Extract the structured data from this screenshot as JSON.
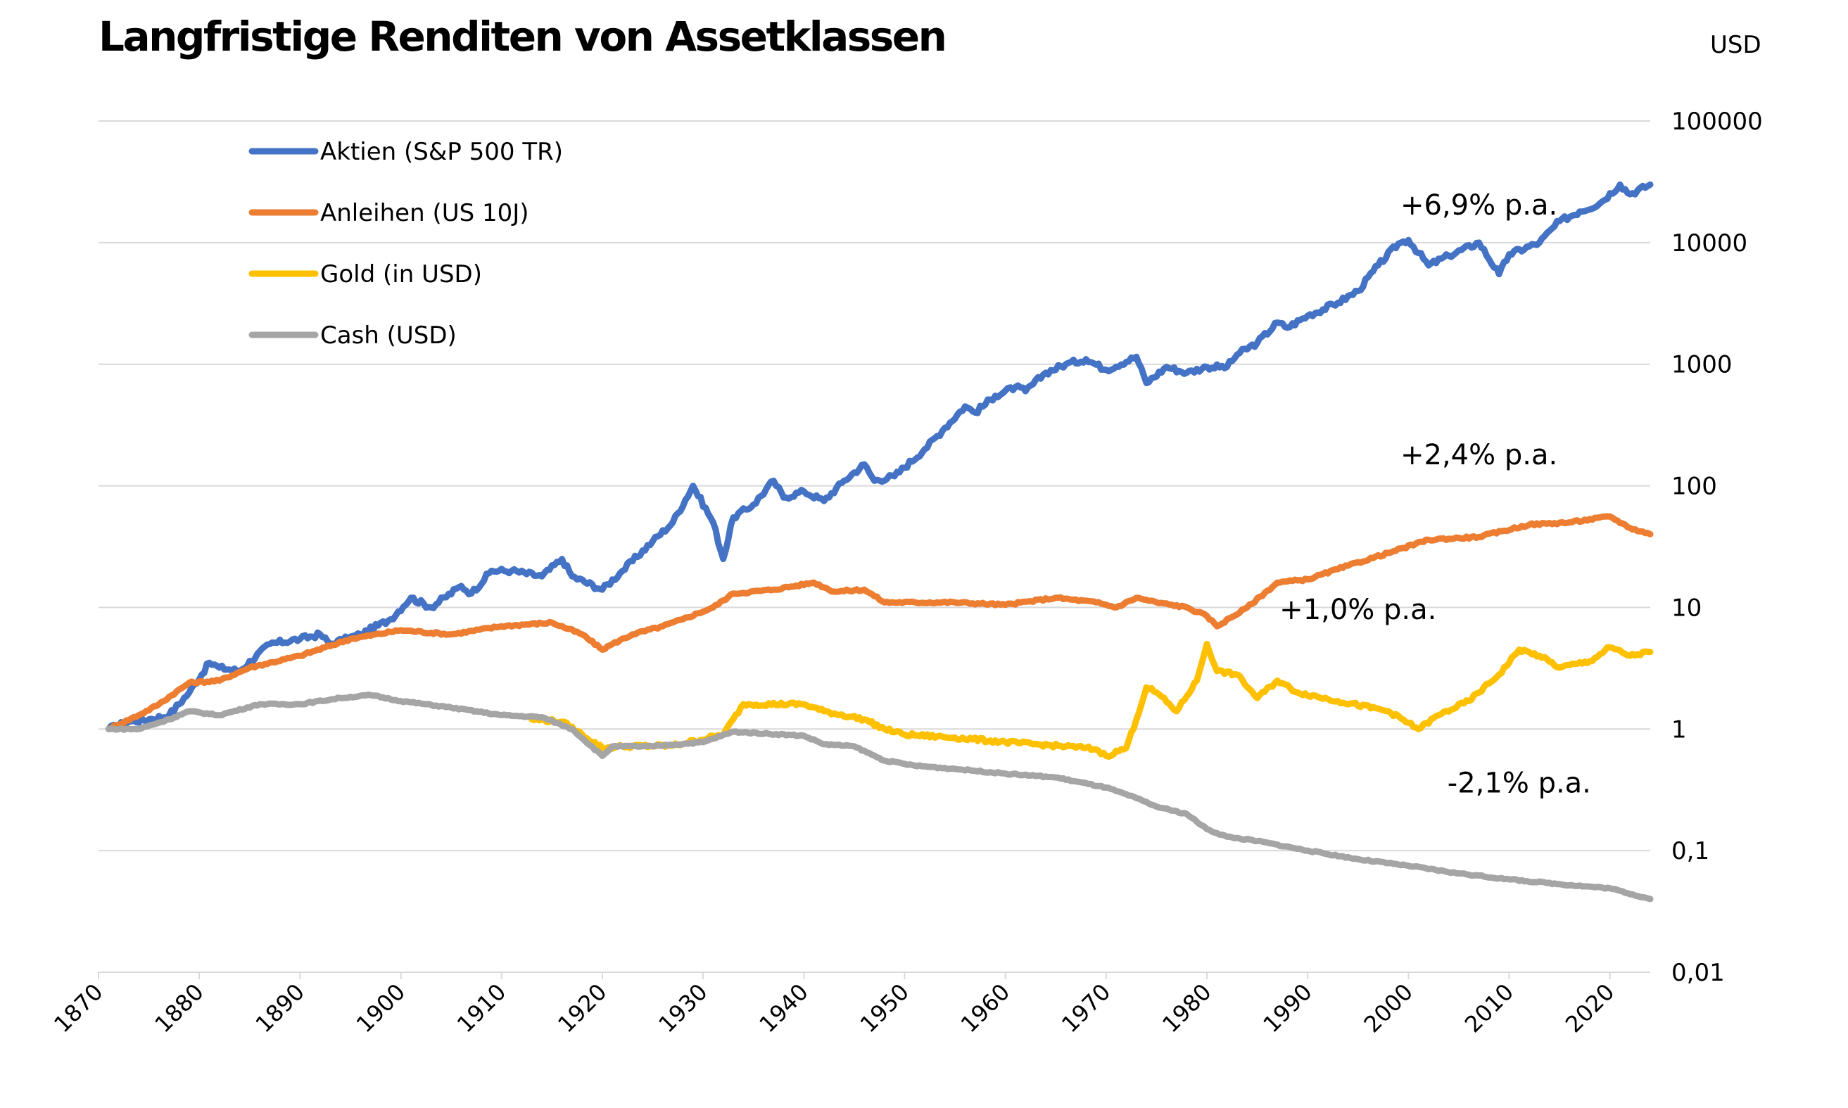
{
  "chart_data": {
    "type": "line",
    "title": "Langfristige Renditen von Assetklassen",
    "ylabel": "USD",
    "y_scale": "log",
    "ylim": [
      0.01,
      100000
    ],
    "xlim": [
      1870,
      2024
    ],
    "y_ticks": [
      "100000",
      "10000",
      "1000",
      "100",
      "10",
      "1",
      "0,1",
      "0,01"
    ],
    "x_ticks": [
      "1870",
      "1880",
      "1890",
      "1900",
      "1910",
      "1920",
      "1930",
      "1940",
      "1950",
      "1960",
      "1970",
      "1980",
      "1990",
      "2000",
      "2010",
      "2020"
    ],
    "grid": true,
    "legend_position": "top-left",
    "series": [
      {
        "name": "Aktien (S&P 500 TR)",
        "color": "#4472C4",
        "points": [
          [
            1871,
            1.0
          ],
          [
            1873,
            1.15
          ],
          [
            1875,
            1.2
          ],
          [
            1877,
            1.3
          ],
          [
            1879,
            2.0
          ],
          [
            1881,
            3.5
          ],
          [
            1882,
            3.2
          ],
          [
            1884,
            3.0
          ],
          [
            1887,
            5.0
          ],
          [
            1890,
            5.5
          ],
          [
            1892,
            6.0
          ],
          [
            1893,
            5.0
          ],
          [
            1896,
            6.0
          ],
          [
            1899,
            8.0
          ],
          [
            1901,
            12.0
          ],
          [
            1903,
            10.0
          ],
          [
            1906,
            15.0
          ],
          [
            1907,
            13.0
          ],
          [
            1909,
            20.0
          ],
          [
            1911,
            20.0
          ],
          [
            1914,
            18.0
          ],
          [
            1916,
            25.0
          ],
          [
            1917,
            18.0
          ],
          [
            1920,
            14.0
          ],
          [
            1922,
            20.0
          ],
          [
            1925,
            35.0
          ],
          [
            1927,
            50.0
          ],
          [
            1929,
            100.0
          ],
          [
            1931,
            50.0
          ],
          [
            1932,
            25.0
          ],
          [
            1933,
            55.0
          ],
          [
            1935,
            70.0
          ],
          [
            1937,
            110.0
          ],
          [
            1938,
            80.0
          ],
          [
            1940,
            90.0
          ],
          [
            1942,
            75.0
          ],
          [
            1944,
            110.0
          ],
          [
            1946,
            150.0
          ],
          [
            1947,
            110.0
          ],
          [
            1949,
            120.0
          ],
          [
            1952,
            200.0
          ],
          [
            1954,
            300.0
          ],
          [
            1956,
            450.0
          ],
          [
            1957,
            400.0
          ],
          [
            1959,
            550.0
          ],
          [
            1961,
            650.0
          ],
          [
            1962,
            600.0
          ],
          [
            1964,
            850.0
          ],
          [
            1966,
            1000.0
          ],
          [
            1968,
            1100.0
          ],
          [
            1970,
            900.0
          ],
          [
            1973,
            1150.0
          ],
          [
            1974,
            700.0
          ],
          [
            1976,
            950.0
          ],
          [
            1978,
            850.0
          ],
          [
            1980,
            950.0
          ],
          [
            1982,
            950.0
          ],
          [
            1983,
            1200.0
          ],
          [
            1985,
            1500.0
          ],
          [
            1987,
            2200.0
          ],
          [
            1988,
            2000.0
          ],
          [
            1990,
            2500.0
          ],
          [
            1993,
            3200.0
          ],
          [
            1995,
            4000.0
          ],
          [
            1997,
            6500.0
          ],
          [
            1999,
            9800.0
          ],
          [
            2000,
            10500.0
          ],
          [
            2002,
            6500.0
          ],
          [
            2004,
            7800.0
          ],
          [
            2007,
            10000.0
          ],
          [
            2009,
            5500.0
          ],
          [
            2010,
            8000.0
          ],
          [
            2013,
            10000.0
          ],
          [
            2015,
            15000.0
          ],
          [
            2017,
            18000.0
          ],
          [
            2019,
            21000.0
          ],
          [
            2021,
            30000.0
          ],
          [
            2022,
            25000.0
          ],
          [
            2024,
            30000.0
          ]
        ]
      },
      {
        "name": "Anleihen (US 10J)",
        "color": "#ED7D31",
        "points": [
          [
            1871,
            1.0
          ],
          [
            1874,
            1.3
          ],
          [
            1876,
            1.6
          ],
          [
            1879,
            2.4
          ],
          [
            1882,
            2.5
          ],
          [
            1885,
            3.2
          ],
          [
            1890,
            4.0
          ],
          [
            1895,
            5.5
          ],
          [
            1900,
            6.5
          ],
          [
            1905,
            6.0
          ],
          [
            1910,
            7.0
          ],
          [
            1915,
            7.5
          ],
          [
            1918,
            6.0
          ],
          [
            1920,
            4.5
          ],
          [
            1921,
            5.0
          ],
          [
            1923,
            6.0
          ],
          [
            1926,
            7.0
          ],
          [
            1928,
            8.0
          ],
          [
            1931,
            10.0
          ],
          [
            1933,
            13.0
          ],
          [
            1937,
            14.0
          ],
          [
            1941,
            16.0
          ],
          [
            1943,
            13.5
          ],
          [
            1946,
            14.0
          ],
          [
            1948,
            11.0
          ],
          [
            1955,
            11.0
          ],
          [
            1960,
            10.5
          ],
          [
            1965,
            12.0
          ],
          [
            1969,
            11.0
          ],
          [
            1971,
            10.0
          ],
          [
            1973,
            12.0
          ],
          [
            1975,
            11.0
          ],
          [
            1978,
            10.0
          ],
          [
            1980,
            8.5
          ],
          [
            1981,
            7.0
          ],
          [
            1984,
            10.0
          ],
          [
            1987,
            16.0
          ],
          [
            1990,
            17.0
          ],
          [
            1994,
            22.0
          ],
          [
            1998,
            28.0
          ],
          [
            2002,
            36.0
          ],
          [
            2007,
            38.0
          ],
          [
            2012,
            48.0
          ],
          [
            2016,
            50.0
          ],
          [
            2020,
            56.0
          ],
          [
            2022,
            45.0
          ],
          [
            2024,
            40.0
          ]
        ]
      },
      {
        "name": "Gold (in USD)",
        "color": "#FFC000",
        "points": [
          [
            1913,
            1.2
          ],
          [
            1916,
            1.15
          ],
          [
            1918,
            0.9
          ],
          [
            1920,
            0.7
          ],
          [
            1922,
            0.72
          ],
          [
            1927,
            0.73
          ],
          [
            1932,
            0.9
          ],
          [
            1934,
            1.6
          ],
          [
            1940,
            1.6
          ],
          [
            1942,
            1.4
          ],
          [
            1946,
            1.2
          ],
          [
            1948,
            1.0
          ],
          [
            1950,
            0.9
          ],
          [
            1955,
            0.85
          ],
          [
            1960,
            0.78
          ],
          [
            1968,
            0.7
          ],
          [
            1969,
            0.68
          ],
          [
            1970,
            0.6
          ],
          [
            1972,
            0.7
          ],
          [
            1973,
            1.2
          ],
          [
            1974,
            2.2
          ],
          [
            1975,
            2.0
          ],
          [
            1977,
            1.4
          ],
          [
            1979,
            2.5
          ],
          [
            1980,
            5.0
          ],
          [
            1981,
            3.0
          ],
          [
            1983,
            2.8
          ],
          [
            1985,
            1.8
          ],
          [
            1987,
            2.5
          ],
          [
            1989,
            2.0
          ],
          [
            1993,
            1.7
          ],
          [
            1998,
            1.4
          ],
          [
            2001,
            1.0
          ],
          [
            2003,
            1.3
          ],
          [
            2006,
            1.7
          ],
          [
            2009,
            2.8
          ],
          [
            2011,
            4.5
          ],
          [
            2013,
            4.0
          ],
          [
            2015,
            3.2
          ],
          [
            2018,
            3.6
          ],
          [
            2020,
            4.7
          ],
          [
            2022,
            4.0
          ],
          [
            2024,
            4.3
          ]
        ]
      },
      {
        "name": "Cash (USD)",
        "color": "#A5A5A5",
        "points": [
          [
            1871,
            1.0
          ],
          [
            1874,
            1.0
          ],
          [
            1877,
            1.2
          ],
          [
            1879,
            1.4
          ],
          [
            1882,
            1.3
          ],
          [
            1886,
            1.6
          ],
          [
            1890,
            1.6
          ],
          [
            1894,
            1.8
          ],
          [
            1897,
            1.9
          ],
          [
            1900,
            1.7
          ],
          [
            1905,
            1.5
          ],
          [
            1910,
            1.3
          ],
          [
            1914,
            1.25
          ],
          [
            1917,
            1.0
          ],
          [
            1920,
            0.6
          ],
          [
            1921,
            0.72
          ],
          [
            1925,
            0.72
          ],
          [
            1930,
            0.78
          ],
          [
            1933,
            0.95
          ],
          [
            1940,
            0.88
          ],
          [
            1942,
            0.75
          ],
          [
            1945,
            0.72
          ],
          [
            1948,
            0.55
          ],
          [
            1951,
            0.5
          ],
          [
            1955,
            0.47
          ],
          [
            1960,
            0.43
          ],
          [
            1965,
            0.4
          ],
          [
            1970,
            0.33
          ],
          [
            1973,
            0.27
          ],
          [
            1975,
            0.23
          ],
          [
            1978,
            0.2
          ],
          [
            1980,
            0.15
          ],
          [
            1982,
            0.13
          ],
          [
            1985,
            0.12
          ],
          [
            1990,
            0.1
          ],
          [
            1995,
            0.085
          ],
          [
            2000,
            0.075
          ],
          [
            2005,
            0.065
          ],
          [
            2010,
            0.058
          ],
          [
            2015,
            0.053
          ],
          [
            2020,
            0.049
          ],
          [
            2024,
            0.04
          ]
        ]
      }
    ],
    "annotations": [
      {
        "text": "+6,9% p.a.",
        "x": 2007,
        "y": 17000
      },
      {
        "text": "+2,4% p.a.",
        "x": 2007,
        "y": 150
      },
      {
        "text": "+1,0% p.a.",
        "x": 1995,
        "y": 8
      },
      {
        "text": "-2,1% p.a.",
        "x": 2011,
        "y": 0.3
      }
    ]
  }
}
